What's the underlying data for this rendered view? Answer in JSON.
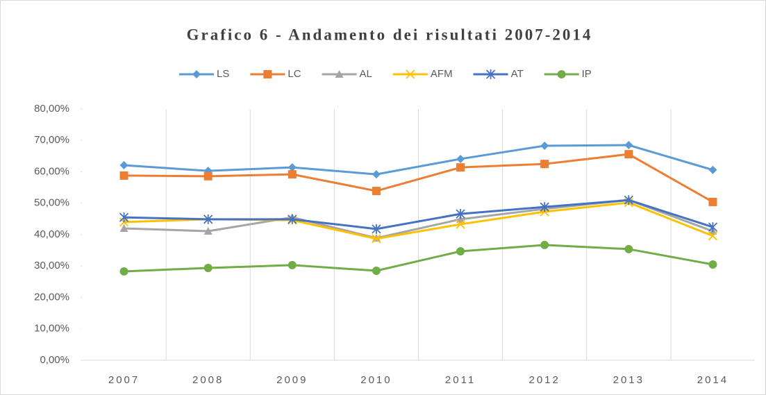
{
  "chart_data": {
    "type": "line",
    "title": "Grafico 6 - Andamento dei risultati 2007-2014",
    "categories": [
      "2007",
      "2008",
      "2009",
      "2010",
      "2011",
      "2012",
      "2013",
      "2014"
    ],
    "series": [
      {
        "name": "LS",
        "color": "#5b9bd5",
        "marker": "diamond",
        "values": [
          62.1,
          60.3,
          61.4,
          59.2,
          64.1,
          68.3,
          68.5,
          60.6
        ]
      },
      {
        "name": "LC",
        "color": "#ed7d31",
        "marker": "square",
        "values": [
          58.8,
          58.6,
          59.2,
          53.9,
          61.4,
          62.5,
          65.6,
          50.4
        ]
      },
      {
        "name": "AL",
        "color": "#a5a5a5",
        "marker": "triangle",
        "values": [
          42.0,
          41.1,
          45.5,
          38.9,
          44.9,
          48.2,
          51.0,
          41.1
        ]
      },
      {
        "name": "AFM",
        "color": "#ffc000",
        "marker": "x",
        "values": [
          44.0,
          44.9,
          44.6,
          38.7,
          43.3,
          47.3,
          50.2,
          39.6
        ]
      },
      {
        "name": "AT",
        "color": "#4472c4",
        "marker": "asterisk",
        "values": [
          45.5,
          44.9,
          44.9,
          41.8,
          46.6,
          48.8,
          51.0,
          42.4
        ]
      },
      {
        "name": "IP",
        "color": "#70ad47",
        "marker": "circle",
        "values": [
          28.3,
          29.4,
          30.3,
          28.5,
          34.7,
          36.7,
          35.4,
          30.5
        ]
      }
    ],
    "ylim": [
      0,
      80
    ],
    "yticks": [
      {
        "value": 0,
        "label": "0,00%"
      },
      {
        "value": 10,
        "label": "10,00%"
      },
      {
        "value": 20,
        "label": "20,00%"
      },
      {
        "value": 30,
        "label": "30,00%"
      },
      {
        "value": 40,
        "label": "40,00%"
      },
      {
        "value": 50,
        "label": "50,00%"
      },
      {
        "value": 60,
        "label": "60,00%"
      },
      {
        "value": 70,
        "label": "70,00%"
      },
      {
        "value": 80,
        "label": "80,00%"
      }
    ],
    "legend": "top",
    "grid": "vertical"
  }
}
